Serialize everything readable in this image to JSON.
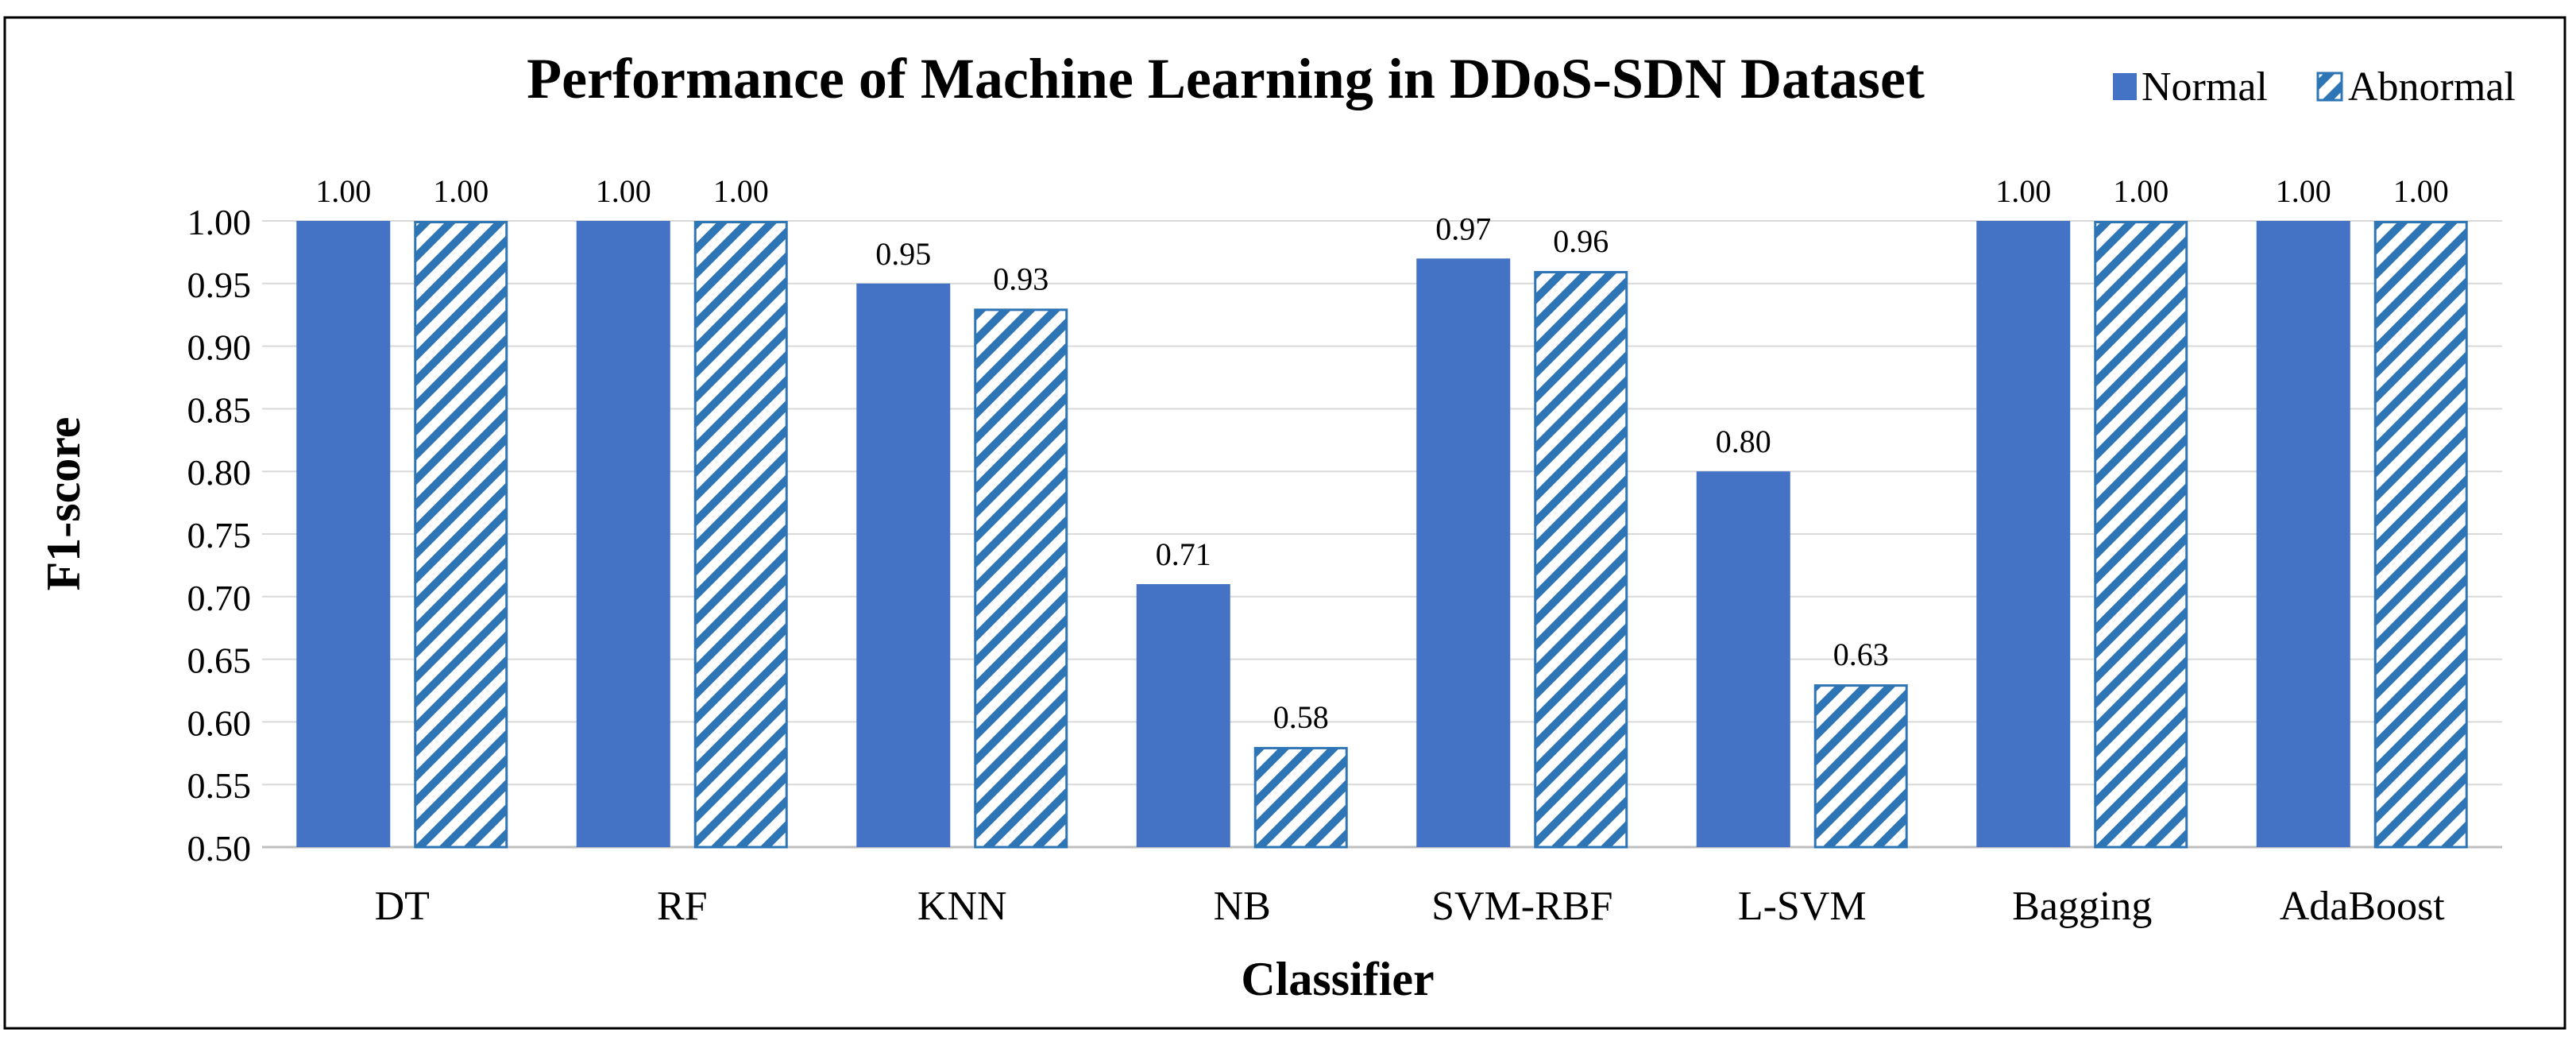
{
  "chart_data": {
    "type": "bar",
    "title": "Performance of Machine Learning in DDoS-SDN Dataset",
    "xlabel": "Classifier",
    "ylabel": "F1-score",
    "ylim": [
      0.5,
      1.0
    ],
    "ytick_step": 0.05,
    "grid": true,
    "legend_position": "top-right",
    "categories": [
      "DT",
      "RF",
      "KNN",
      "NB",
      "SVM-RBF",
      "L-SVM",
      "Bagging",
      "AdaBoost"
    ],
    "series": [
      {
        "name": "Normal",
        "style": "solid",
        "color": "#4472C4",
        "values": [
          1.0,
          1.0,
          0.95,
          0.71,
          0.97,
          0.8,
          1.0,
          1.0
        ]
      },
      {
        "name": "Abnormal",
        "style": "hatched",
        "color": "#2E75B6",
        "values": [
          1.0,
          1.0,
          0.93,
          0.58,
          0.96,
          0.63,
          1.0,
          1.0
        ]
      }
    ],
    "value_label_format": "0.00"
  }
}
